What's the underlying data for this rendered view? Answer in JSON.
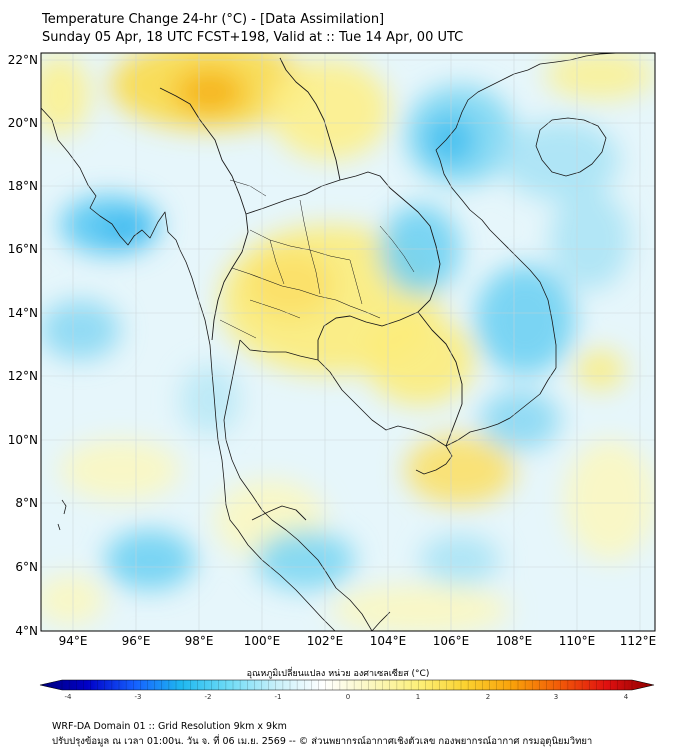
{
  "header": {
    "title": "Temperature Change 24-hr (°C) - [Data Assimilation]",
    "subtitle": "Sunday 05 Apr, 18 UTC FCST+198, Valid at :: Tue 14 Apr, 00 UTC"
  },
  "map": {
    "lat_ticks": [
      "22°N",
      "20°N",
      "18°N",
      "16°N",
      "14°N",
      "12°N",
      "10°N",
      "8°N",
      "6°N",
      "4°N"
    ],
    "lon_ticks": [
      "94°E",
      "96°E",
      "98°E",
      "100°E",
      "102°E",
      "104°E",
      "106°E",
      "108°E",
      "110°E",
      "112°E"
    ],
    "extent": {
      "lon_min": 93,
      "lon_max": 112.5,
      "lat_min": 4,
      "lat_max": 22.2
    }
  },
  "colorbar": {
    "label": "อุณหภูมิเปลี่ยนแปลง หน่วย องศาเซลเซียส (°C)",
    "ticks": [
      "-4",
      "-3",
      "-2",
      "-1",
      "0",
      "1",
      "2",
      "3",
      "4"
    ],
    "colors": [
      "#00007a",
      "#0000c8",
      "#1560ff",
      "#1fb8f0",
      "#6fdcf6",
      "#c8f0fa",
      "#ffffff",
      "#fbf7c0",
      "#fdf07a",
      "#fbd230",
      "#f9a10a",
      "#f25a08",
      "#e01010",
      "#8c0000"
    ]
  },
  "footer": {
    "line1": "WRF-DA Domain 01 :: Grid Resolution 9km x 9km",
    "line2": "ปรับปรุงข้อมูล ณ เวลา 01:00น. วัน จ. ที่ 06 เม.ย. 2569 -- © ส่วนพยากรณ์อากาศเชิงตัวเลข กองพยากรณ์อากาศ กรมอุตุนิยมวิทยา"
  }
}
